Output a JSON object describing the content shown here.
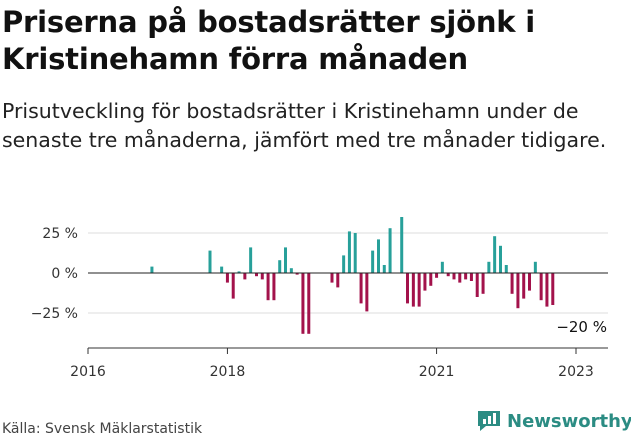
{
  "header": {
    "title": "Priserna på bostadsrätter sjönk i Kristinehamn förra månaden",
    "subtitle": "Prisutveckling för bostadsrätter i Kristinehamn under de senaste tre månaderna, jämfört med tre månader tidigare."
  },
  "footer": {
    "source": "Källa: Svensk Mäklarstatistik",
    "brand": "Newsworthy"
  },
  "colors": {
    "positive": "#27a09a",
    "negative": "#a3124b",
    "axis": "#333333",
    "grid": "#dddddd",
    "brand": "#2b8c83"
  },
  "chart_data": {
    "type": "bar",
    "title": "Priserna på bostadsrätter sjönk i Kristinehamn förra månaden",
    "xlabel": "",
    "ylabel": "",
    "ylim": [
      -45,
      37
    ],
    "xlim": [
      2016,
      2023.5
    ],
    "y_ticks": [
      25,
      0,
      -25
    ],
    "y_tick_labels": [
      "25 %",
      "0 %",
      "−25 %"
    ],
    "x_ticks": [
      2016,
      2018,
      2021,
      2023
    ],
    "x_tick_labels": [
      "2016",
      "2018",
      "2021",
      "2023"
    ],
    "last_value_label": "−20 %",
    "series": [
      {
        "name": "Prisutveckling",
        "x": [
          2016.917,
          2017.75,
          2017.917,
          2018,
          2018.083,
          2018.167,
          2018.25,
          2018.333,
          2018.417,
          2018.5,
          2018.583,
          2018.667,
          2018.75,
          2018.833,
          2018.917,
          2019,
          2019.083,
          2019.167,
          2019.5,
          2019.583,
          2019.667,
          2019.75,
          2019.833,
          2019.917,
          2020,
          2020.083,
          2020.167,
          2020.25,
          2020.333,
          2020.5,
          2020.583,
          2020.667,
          2020.75,
          2020.833,
          2020.917,
          2021,
          2021.083,
          2021.167,
          2021.25,
          2021.333,
          2021.417,
          2021.5,
          2021.583,
          2021.667,
          2021.75,
          2021.833,
          2021.917,
          2022,
          2022.083,
          2022.167,
          2022.25,
          2022.333,
          2022.417,
          2022.5,
          2022.583,
          2022.667,
          2022.75,
          2022.833,
          2022.917,
          2023,
          2023.083
        ],
        "values": [
          4,
          14,
          4,
          -6,
          -16,
          1,
          -4,
          16,
          -2,
          -4,
          -17,
          -17,
          8,
          16,
          3,
          -1,
          -38,
          -38,
          -6,
          -9,
          11,
          26,
          25,
          -19,
          -24,
          14,
          21,
          5,
          28,
          35,
          -19,
          -21,
          -21,
          -11,
          -8,
          -3,
          7,
          -2,
          -4,
          -6,
          -4,
          -5,
          -15,
          -13,
          7,
          23,
          17,
          5,
          -13,
          -22,
          -16,
          -11,
          7,
          -17,
          -21,
          -20,
          0,
          0,
          0,
          0,
          0
        ]
      }
    ]
  }
}
